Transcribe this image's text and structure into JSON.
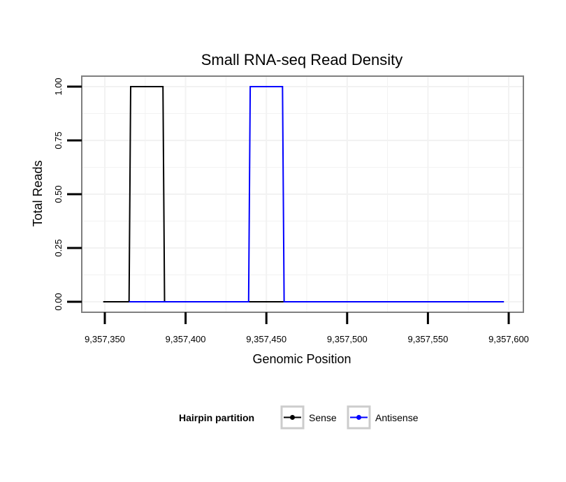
{
  "chart_data": {
    "type": "line",
    "title": "Small RNA-seq Read Density",
    "xlabel": "Genomic Position",
    "ylabel": "Total Reads",
    "xlim": [
      9357345,
      9357600
    ],
    "ylim": [
      -0.04,
      1.04
    ],
    "x_ticks": [
      9357350,
      9357400,
      9357450,
      9357500,
      9357550,
      9357600
    ],
    "x_tick_labels": [
      "9,357,350",
      "9,357,400",
      "9,357,450",
      "9,357,500",
      "9,357,550",
      "9,357,600"
    ],
    "y_ticks": [
      0,
      0.25,
      0.5,
      0.75,
      1.0
    ],
    "y_tick_labels": [
      "0.00",
      "0.25",
      "0.50",
      "0.75",
      "1.00"
    ],
    "grid": true,
    "legend": {
      "title": "Hairpin partition",
      "placement": "bottom"
    },
    "series": [
      {
        "name": "Sense",
        "color": "#000000",
        "points": [
          [
            9357349,
            0
          ],
          [
            9357365,
            0
          ],
          [
            9357366,
            1
          ],
          [
            9357386,
            1
          ],
          [
            9357387,
            0
          ],
          [
            9357597,
            0
          ]
        ]
      },
      {
        "name": "Antisense",
        "color": "#0000ff",
        "points": [
          [
            9357365,
            0
          ],
          [
            9357386,
            0
          ],
          [
            9357387,
            0
          ],
          [
            9357439,
            0
          ],
          [
            9357440,
            1
          ],
          [
            9357460,
            1
          ],
          [
            9357461,
            0
          ],
          [
            9357597,
            0
          ]
        ]
      }
    ]
  }
}
